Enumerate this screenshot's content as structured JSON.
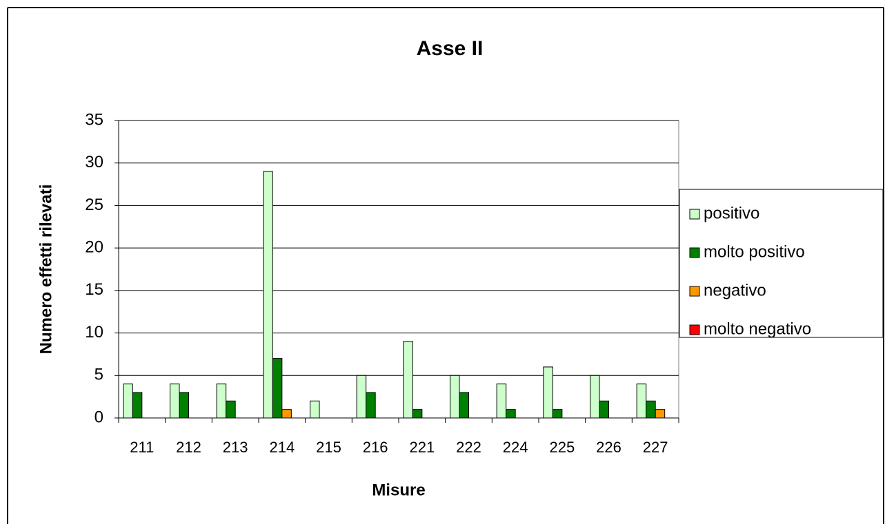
{
  "chart_data": {
    "type": "bar",
    "title": "Asse II",
    "x_label": "Misure",
    "y_label": "Numero effetti rilevati",
    "categories": [
      "211",
      "212",
      "213",
      "214",
      "215",
      "216",
      "221",
      "222",
      "224",
      "225",
      "226",
      "227"
    ],
    "series": [
      {
        "name": "positivo",
        "color": "#ccffcc",
        "values": [
          4,
          4,
          4,
          29,
          2,
          5,
          9,
          5,
          4,
          6,
          5,
          4
        ]
      },
      {
        "name": "molto positivo",
        "color": "#008000",
        "values": [
          3,
          3,
          2,
          7,
          0,
          3,
          1,
          3,
          1,
          1,
          2,
          2
        ]
      },
      {
        "name": "negativo",
        "color": "#ff9900",
        "values": [
          0,
          0,
          0,
          1,
          0,
          0,
          0,
          0,
          0,
          0,
          0,
          1
        ]
      },
      {
        "name": "molto negativo",
        "color": "#ff0000",
        "values": [
          0,
          0,
          0,
          0,
          0,
          0,
          0,
          0,
          0,
          0,
          0,
          0
        ]
      }
    ],
    "ylim": [
      0,
      35
    ],
    "yticks": [
      0,
      5,
      10,
      15,
      20,
      25,
      30,
      35
    ],
    "grid": true,
    "legend": "right"
  }
}
